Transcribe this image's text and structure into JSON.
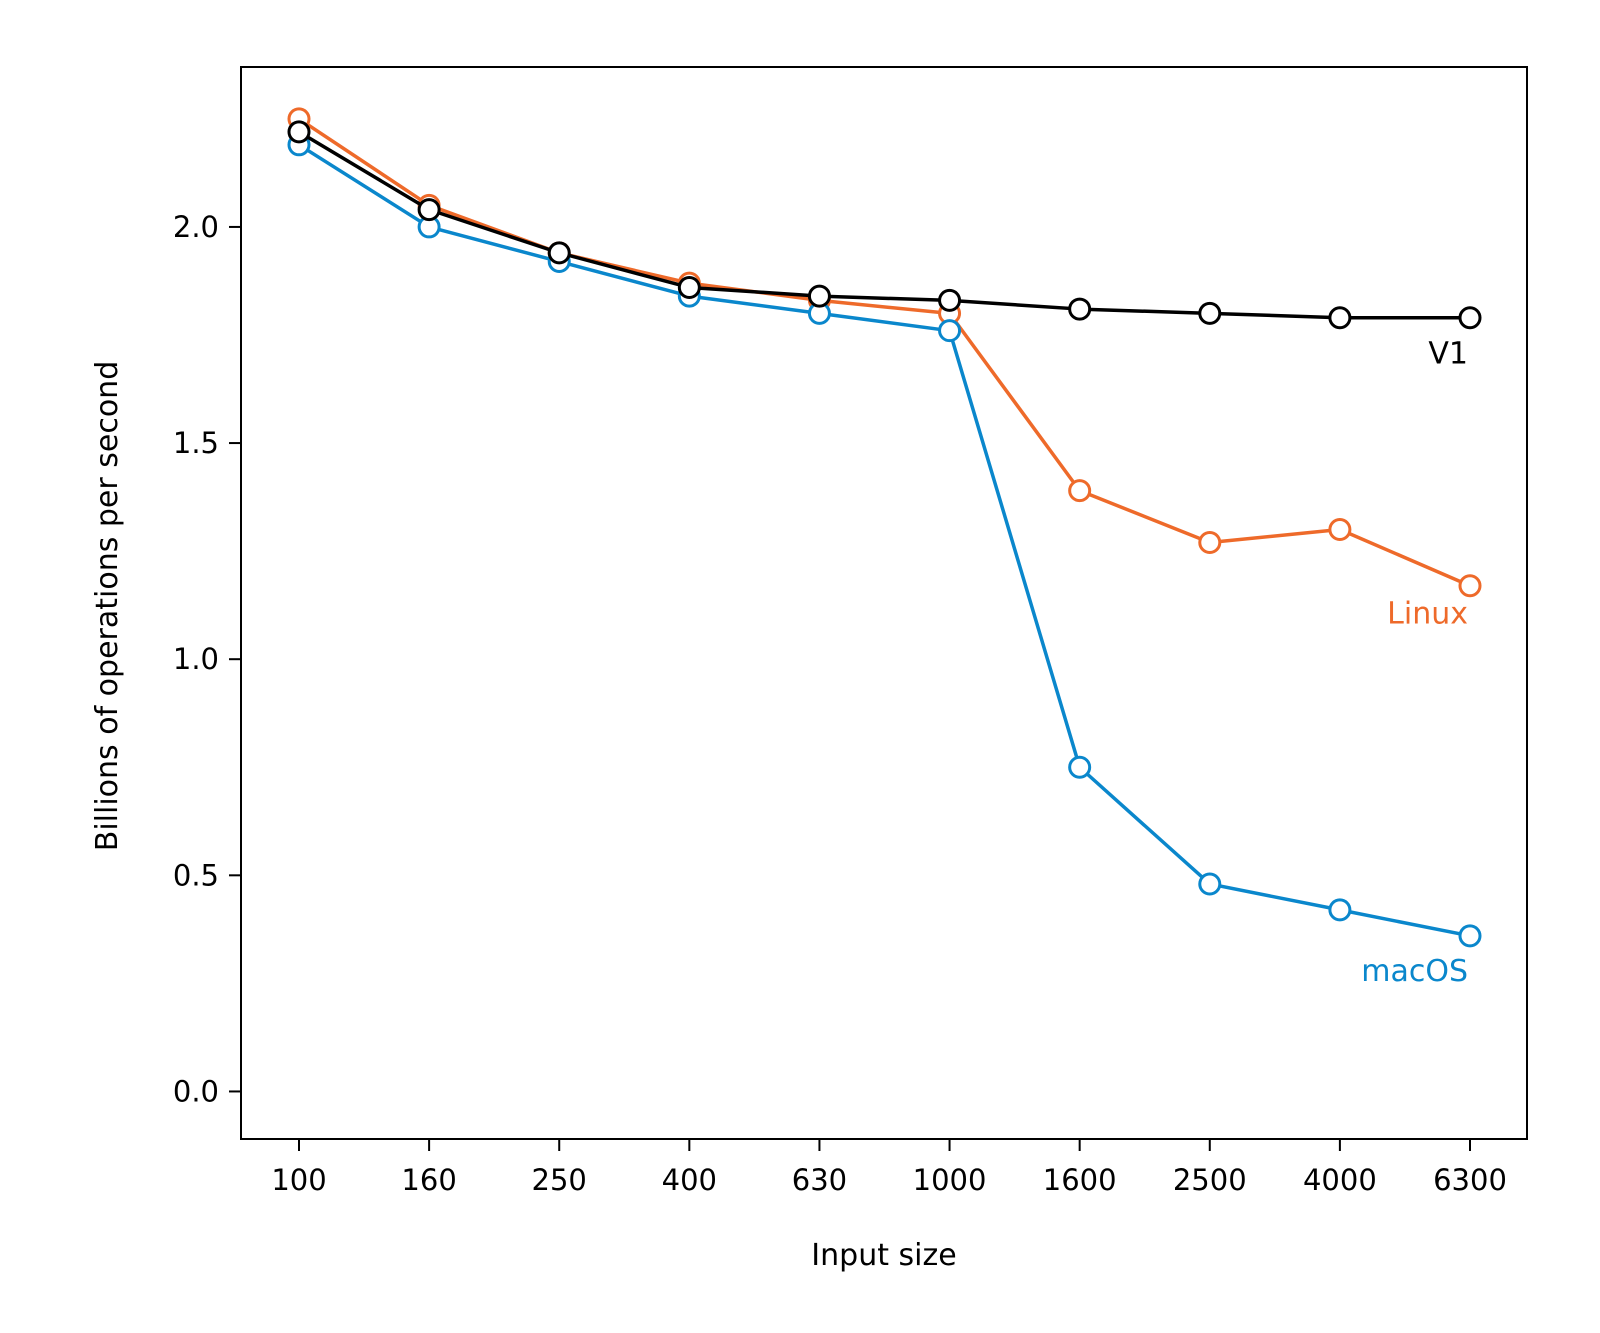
{
  "chart_data": {
    "type": "line",
    "title": "",
    "xlabel": "Input size",
    "ylabel": "Billions of operations per second",
    "categories": [
      "100",
      "160",
      "250",
      "400",
      "630",
      "1000",
      "1600",
      "2500",
      "4000",
      "6300"
    ],
    "ylim": [
      -0.11,
      2.37
    ],
    "yticks": [
      0.0,
      0.5,
      1.0,
      1.5,
      2.0
    ],
    "ytick_labels": [
      "0.0",
      "0.5",
      "1.0",
      "1.5",
      "2.0"
    ],
    "grid": false,
    "legend": "none",
    "series": [
      {
        "name": "Linux",
        "label": "Linux",
        "color": "#EE6A2A",
        "marker_fill": "#ffffff",
        "values": [
          2.25,
          2.05,
          1.94,
          1.87,
          1.83,
          1.8,
          1.39,
          1.27,
          1.3,
          1.17
        ]
      },
      {
        "name": "macOS",
        "label": "macOS",
        "color": "#0A87CC",
        "marker_fill": "#ffffff",
        "values": [
          2.19,
          2.0,
          1.92,
          1.84,
          1.8,
          1.76,
          0.75,
          0.48,
          0.42,
          0.36
        ]
      },
      {
        "name": "V1",
        "label": "V1",
        "color": "#000000",
        "marker_fill": "#ffffff",
        "values": [
          2.22,
          2.04,
          1.94,
          1.86,
          1.84,
          1.83,
          1.81,
          1.8,
          1.79,
          1.79
        ]
      }
    ]
  }
}
